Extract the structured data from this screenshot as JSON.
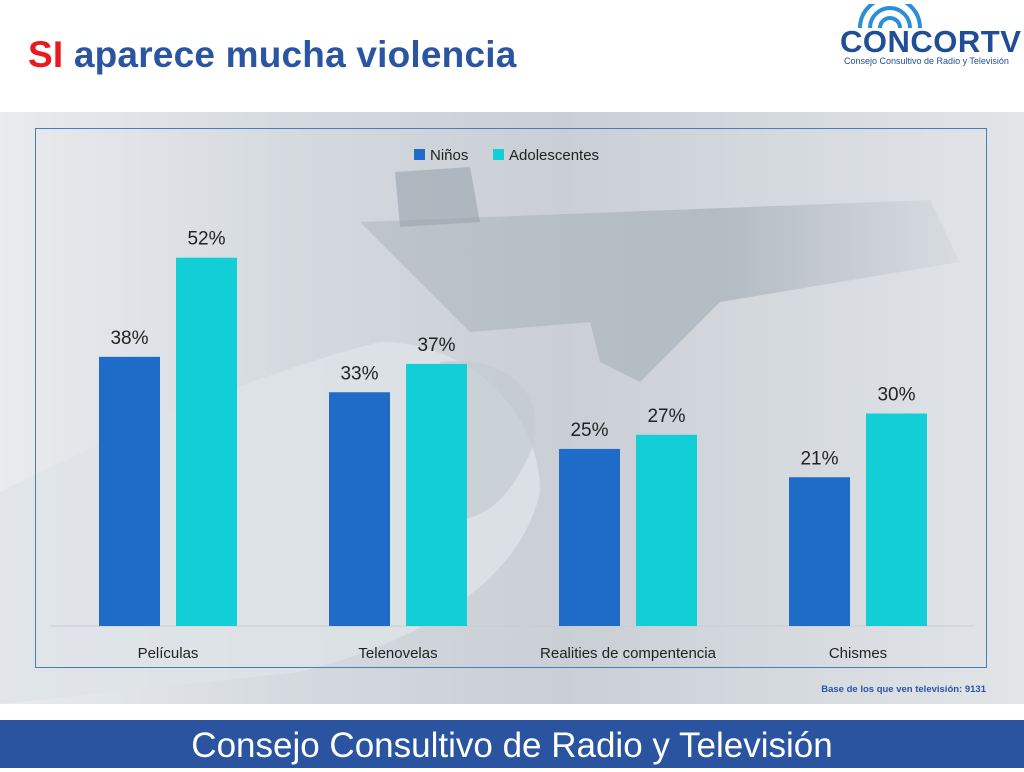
{
  "header": {
    "title_accent": "SI",
    "title_rest": " aparece mucha violencia"
  },
  "logo": {
    "wordmark": "CONCORTV",
    "subtitle": "Consejo Consultivo de Radio y Televisión"
  },
  "colors": {
    "title": "#2a55a2",
    "title_accent": "#e8191f",
    "ninos": "#1f6cc8",
    "adolescentes": "#12cfd7",
    "footer": "#2a54a0"
  },
  "chart_data": {
    "type": "bar",
    "categories": [
      "Películas",
      "Telenovelas",
      "Realities de compentencia",
      "Chismes"
    ],
    "series": [
      {
        "name": "Niños",
        "values": [
          38,
          33,
          25,
          21
        ],
        "labels": [
          "38%",
          "33%",
          "25%",
          "21%"
        ],
        "color": "#1f6cc8"
      },
      {
        "name": "Adolescentes",
        "values": [
          52,
          37,
          27,
          30
        ],
        "labels": [
          "52%",
          "37%",
          "27%",
          "30%"
        ],
        "color": "#12cfd7"
      }
    ],
    "ylim": [
      0,
      60
    ],
    "unit": "%",
    "legend_position": "top-center",
    "grid": false
  },
  "source_note": "Base de los que ven televisión: 9131",
  "footer_text": "Consejo Consultivo de Radio y Televisión"
}
